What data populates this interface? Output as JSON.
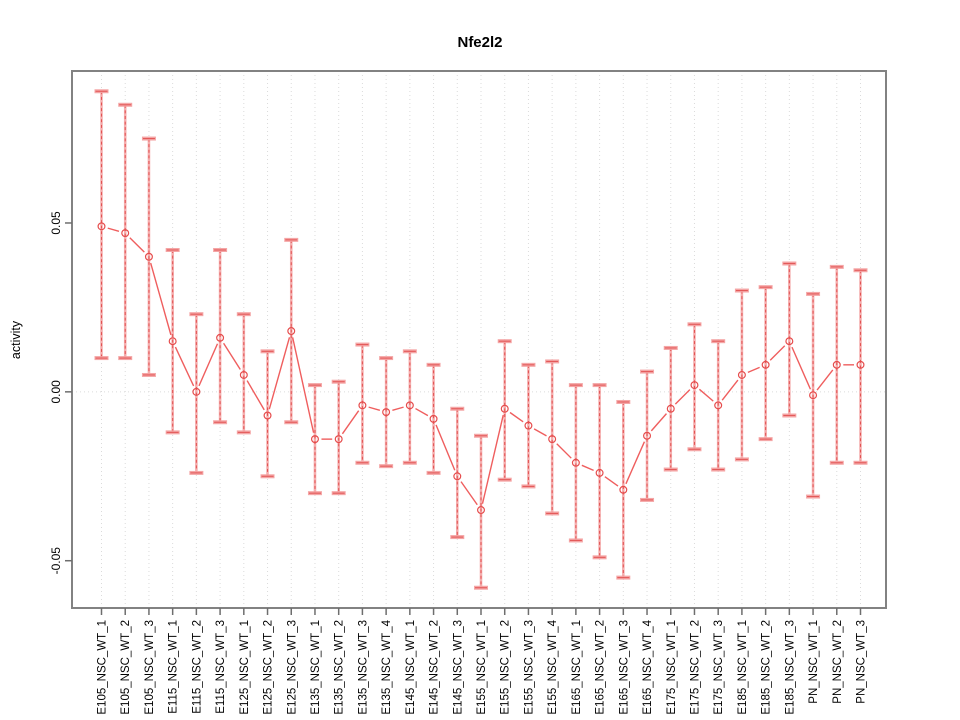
{
  "chart_data": {
    "type": "line",
    "title": "Nfe2l2",
    "xlabel": "",
    "ylabel": "activity",
    "ylim": [
      -0.064,
      0.095
    ],
    "yticks": [
      {
        "label": "0.05",
        "value": 0.05
      },
      {
        "label": "0.00",
        "value": 0.0
      },
      {
        "label": "-0.05",
        "value": -0.05
      }
    ],
    "grid": {
      "vertical": "dotted line at every category",
      "horizontal": "dotted line at y=0 only"
    },
    "legend": "none",
    "marker": "open-circle",
    "error_bars": true,
    "categories": [
      "E105_NSC_WT_1",
      "E105_NSC_WT_2",
      "E105_NSC_WT_3",
      "E115_NSC_WT_1",
      "E115_NSC_WT_2",
      "E115_NSC_WT_3",
      "E125_NSC_WT_1",
      "E125_NSC_WT_2",
      "E125_NSC_WT_3",
      "E135_NSC_WT_1",
      "E135_NSC_WT_2",
      "E135_NSC_WT_3",
      "E135_NSC_WT_4",
      "E145_NSC_WT_1",
      "E145_NSC_WT_2",
      "E145_NSC_WT_3",
      "E155_NSC_WT_1",
      "E155_NSC_WT_2",
      "E155_NSC_WT_3",
      "E155_NSC_WT_4",
      "E165_NSC_WT_1",
      "E165_NSC_WT_2",
      "E165_NSC_WT_3",
      "E165_NSC_WT_4",
      "E175_NSC_WT_1",
      "E175_NSC_WT_2",
      "E175_NSC_WT_3",
      "E185_NSC_WT_1",
      "E185_NSC_WT_2",
      "E185_NSC_WT_3",
      "PN_NSC_WT_1",
      "PN_NSC_WT_2",
      "PN_NSC_WT_3"
    ],
    "series": [
      {
        "name": "activity",
        "values": [
          0.049,
          0.047,
          0.04,
          0.015,
          0.0,
          0.016,
          0.005,
          -0.007,
          0.018,
          -0.014,
          -0.014,
          -0.004,
          -0.006,
          -0.004,
          -0.008,
          -0.025,
          -0.035,
          -0.005,
          -0.01,
          -0.014,
          -0.021,
          -0.024,
          -0.029,
          -0.013,
          -0.005,
          0.002,
          -0.004,
          0.005,
          0.008,
          0.015,
          -0.001,
          0.008,
          0.008
        ],
        "lower": [
          0.01,
          0.01,
          0.005,
          -0.012,
          -0.024,
          -0.009,
          -0.012,
          -0.025,
          -0.009,
          -0.03,
          -0.03,
          -0.021,
          -0.022,
          -0.021,
          -0.024,
          -0.043,
          -0.058,
          -0.026,
          -0.028,
          -0.036,
          -0.044,
          -0.049,
          -0.055,
          -0.032,
          -0.023,
          -0.017,
          -0.023,
          -0.02,
          -0.014,
          -0.007,
          -0.031,
          -0.021,
          -0.021
        ],
        "upper": [
          0.089,
          0.085,
          0.075,
          0.042,
          0.023,
          0.042,
          0.023,
          0.012,
          0.045,
          0.002,
          0.003,
          0.014,
          0.01,
          0.012,
          0.008,
          -0.005,
          -0.013,
          0.015,
          0.008,
          0.009,
          0.002,
          0.002,
          -0.003,
          0.006,
          0.013,
          0.02,
          0.015,
          0.03,
          0.031,
          0.038,
          0.029,
          0.037,
          0.036
        ]
      }
    ],
    "colors": {
      "point": "#e64c4c",
      "line": "#ef5e5e",
      "errorbar_fill": "#f4a2a2",
      "errorbar_dash": "#e04848",
      "frame": "#828282",
      "tick": "#6e6e6e",
      "grid": "#dbdbdb",
      "text": "#000000",
      "background": "#ffffff"
    }
  }
}
